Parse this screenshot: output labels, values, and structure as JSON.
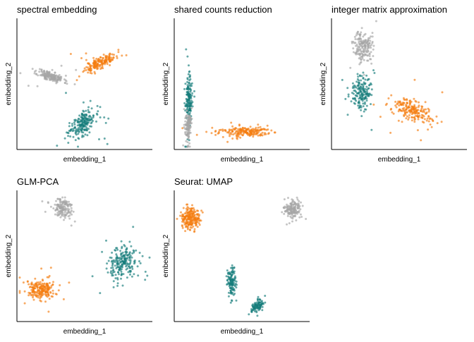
{
  "colors": {
    "gray": "#a6a6a6",
    "orange": "#f47c0f",
    "teal": "#167c7b"
  },
  "chart_data": [
    {
      "type": "scatter",
      "title": "spectral embedding",
      "xlabel": "embedding_1",
      "ylabel": "embedding_2",
      "xlim": [
        0,
        1
      ],
      "ylim": [
        0,
        1
      ],
      "grid": false,
      "seed": 11,
      "clusters": [
        {
          "color": "gray",
          "n": 170,
          "cx": 0.24,
          "cy": 0.56,
          "sx": 0.05,
          "sy": 0.025,
          "rho": -0.6,
          "outliers": 6
        },
        {
          "color": "orange",
          "n": 170,
          "cx": 0.62,
          "cy": 0.67,
          "sx": 0.06,
          "sy": 0.035,
          "rho": 0.75,
          "outliers": 6
        },
        {
          "color": "teal",
          "n": 190,
          "cx": 0.48,
          "cy": 0.19,
          "sx": 0.05,
          "sy": 0.06,
          "rho": 0.55,
          "outliers": 10
        }
      ]
    },
    {
      "type": "scatter",
      "title": "shared counts reduction",
      "xlabel": "embedding_1",
      "ylabel": "embedding_2",
      "xlim": [
        0,
        1
      ],
      "ylim": [
        0,
        1
      ],
      "grid": false,
      "seed": 23,
      "clusters": [
        {
          "color": "teal",
          "n": 150,
          "cx": 0.09,
          "cy": 0.37,
          "sx": 0.012,
          "sy": 0.09,
          "rho": 0,
          "outliers": 10
        },
        {
          "color": "gray",
          "n": 120,
          "cx": 0.085,
          "cy": 0.16,
          "sx": 0.012,
          "sy": 0.06,
          "rho": 0,
          "outliers": 4
        },
        {
          "color": "orange",
          "n": 180,
          "cx": 0.52,
          "cy": 0.12,
          "sx": 0.1,
          "sy": 0.02,
          "rho": 0,
          "outliers": 10
        }
      ]
    },
    {
      "type": "scatter",
      "title": "integer matrix approximation",
      "xlabel": "embedding_1",
      "ylabel": "embedding_2",
      "xlim": [
        0,
        1
      ],
      "ylim": [
        0,
        1
      ],
      "grid": false,
      "seed": 37,
      "clusters": [
        {
          "color": "gray",
          "n": 170,
          "cx": 0.22,
          "cy": 0.8,
          "sx": 0.035,
          "sy": 0.06,
          "rho": 0,
          "outliers": 4
        },
        {
          "color": "teal",
          "n": 160,
          "cx": 0.21,
          "cy": 0.44,
          "sx": 0.035,
          "sy": 0.07,
          "rho": 0,
          "outliers": 8
        },
        {
          "color": "orange",
          "n": 190,
          "cx": 0.61,
          "cy": 0.29,
          "sx": 0.08,
          "sy": 0.05,
          "rho": -0.55,
          "outliers": 10
        }
      ]
    },
    {
      "type": "scatter",
      "title": "GLM-PCA",
      "xlabel": "embedding_1",
      "ylabel": "embedding_2",
      "xlim": [
        0,
        1
      ],
      "ylim": [
        0,
        1
      ],
      "grid": false,
      "seed": 51,
      "clusters": [
        {
          "color": "gray",
          "n": 150,
          "cx": 0.33,
          "cy": 0.88,
          "sx": 0.035,
          "sy": 0.04,
          "rho": 0,
          "outliers": 6
        },
        {
          "color": "teal",
          "n": 200,
          "cx": 0.8,
          "cy": 0.44,
          "sx": 0.055,
          "sy": 0.07,
          "rho": 0.2,
          "outliers": 8
        },
        {
          "color": "orange",
          "n": 200,
          "cx": 0.17,
          "cy": 0.23,
          "sx": 0.055,
          "sy": 0.04,
          "rho": 0,
          "outliers": 8
        }
      ]
    },
    {
      "type": "scatter",
      "title": "Seurat: UMAP",
      "xlabel": "embedding_1",
      "ylabel": "embedding_2",
      "xlim": [
        0,
        1
      ],
      "ylim": [
        0,
        1
      ],
      "grid": false,
      "seed": 67,
      "clusters": [
        {
          "color": "orange",
          "n": 210,
          "cx": 0.1,
          "cy": 0.79,
          "sx": 0.035,
          "sy": 0.045,
          "rho": 0,
          "outliers": 0
        },
        {
          "color": "gray",
          "n": 160,
          "cx": 0.89,
          "cy": 0.87,
          "sx": 0.03,
          "sy": 0.035,
          "rho": 0,
          "outliers": 0
        },
        {
          "color": "teal",
          "n": 120,
          "cx": 0.42,
          "cy": 0.3,
          "sx": 0.018,
          "sy": 0.06,
          "rho": 0,
          "outliers": 0
        },
        {
          "color": "teal",
          "n": 100,
          "cx": 0.62,
          "cy": 0.1,
          "sx": 0.025,
          "sy": 0.03,
          "rho": 0.6,
          "outliers": 0
        }
      ]
    }
  ]
}
